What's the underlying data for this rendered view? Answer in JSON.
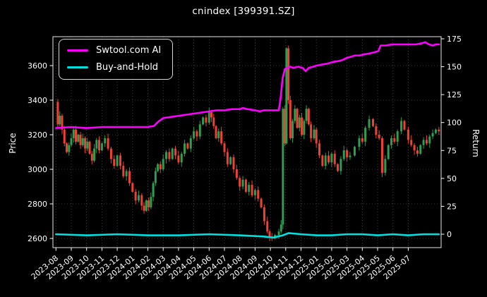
{
  "title": "cnindex [399391.SZ]",
  "legend": {
    "position": "upper-left",
    "items": [
      {
        "label": "Swtool.com AI",
        "color": "#ff00ff"
      },
      {
        "label": "Buy-and-Hold",
        "color": "#00e0e0"
      }
    ]
  },
  "colors": {
    "background": "#000000",
    "text": "#ffffff",
    "grid": "#6a6a6a",
    "spine": "#e8e8e8",
    "candle_up": "#2f9e4f",
    "candle_down": "#ef4135",
    "ai_line": "#ff00ff",
    "bh_line": "#00e0e0"
  },
  "chart_data": {
    "type": "candlestick",
    "title": "cnindex [399391.SZ]",
    "ylabel_left": "Price",
    "ylabel_right": "Return",
    "grid": "dotted",
    "legend_position": "upper left",
    "x_unit": "months since 2023-08",
    "x_tick_labels": [
      "2023-08",
      "2023-09",
      "2023-10",
      "2023-11",
      "2023-12",
      "2024-01",
      "2024-02",
      "2024-03",
      "2024-04",
      "2024-05",
      "2024-06",
      "2024-07",
      "2024-08",
      "2024-09",
      "2024-10",
      "2024-11",
      "2024-12",
      "2025-01",
      "2025-02",
      "2025-03",
      "2025-04",
      "2025-05",
      "2025-06",
      "2025-07"
    ],
    "left_ticks": [
      2600,
      2800,
      3000,
      3200,
      3400,
      3600
    ],
    "right_ticks": [
      0,
      25,
      50,
      75,
      100,
      125,
      150,
      175
    ],
    "price_ylim": [
      2543,
      3767
    ],
    "return_ylim": [
      -13,
      177
    ],
    "price_close": [
      [
        0.0,
        3390
      ],
      [
        0.12,
        3260
      ],
      [
        0.25,
        3310
      ],
      [
        0.4,
        3230
      ],
      [
        0.55,
        3150
      ],
      [
        0.7,
        3100
      ],
      [
        0.85,
        3140
      ],
      [
        1.0,
        3180
      ],
      [
        1.15,
        3230
      ],
      [
        1.3,
        3160
      ],
      [
        1.45,
        3200
      ],
      [
        1.6,
        3140
      ],
      [
        1.75,
        3180
      ],
      [
        1.9,
        3120
      ],
      [
        2.05,
        3160
      ],
      [
        2.2,
        3090
      ],
      [
        2.35,
        3050
      ],
      [
        2.5,
        3120
      ],
      [
        2.65,
        3170
      ],
      [
        2.82,
        3110
      ],
      [
        3.0,
        3150
      ],
      [
        3.2,
        3180
      ],
      [
        3.4,
        3120
      ],
      [
        3.6,
        3060
      ],
      [
        3.8,
        3020
      ],
      [
        4.0,
        3080
      ],
      [
        4.2,
        3020
      ],
      [
        4.4,
        2960
      ],
      [
        4.6,
        2990
      ],
      [
        4.8,
        2920
      ],
      [
        5.0,
        2870
      ],
      [
        5.2,
        2820
      ],
      [
        5.4,
        2850
      ],
      [
        5.6,
        2790
      ],
      [
        5.75,
        2760
      ],
      [
        5.9,
        2820
      ],
      [
        6.05,
        2780
      ],
      [
        6.2,
        2840
      ],
      [
        6.35,
        2920
      ],
      [
        6.5,
        2990
      ],
      [
        6.65,
        3030
      ],
      [
        6.82,
        3000
      ],
      [
        7.0,
        3060
      ],
      [
        7.2,
        3100
      ],
      [
        7.4,
        3060
      ],
      [
        7.6,
        3120
      ],
      [
        7.8,
        3080
      ],
      [
        8.0,
        3040
      ],
      [
        8.2,
        3090
      ],
      [
        8.4,
        3150
      ],
      [
        8.6,
        3120
      ],
      [
        8.8,
        3180
      ],
      [
        9.0,
        3220
      ],
      [
        9.2,
        3190
      ],
      [
        9.4,
        3260
      ],
      [
        9.6,
        3300
      ],
      [
        9.8,
        3270
      ],
      [
        10.0,
        3330
      ],
      [
        10.15,
        3300
      ],
      [
        10.3,
        3250
      ],
      [
        10.45,
        3180
      ],
      [
        10.62,
        3220
      ],
      [
        10.8,
        3150
      ],
      [
        11.0,
        3100
      ],
      [
        11.2,
        3030
      ],
      [
        11.4,
        3070
      ],
      [
        11.6,
        3000
      ],
      [
        11.8,
        2950
      ],
      [
        12.0,
        2900
      ],
      [
        12.2,
        2940
      ],
      [
        12.4,
        2870
      ],
      [
        12.6,
        2910
      ],
      [
        12.8,
        2850
      ],
      [
        13.0,
        2880
      ],
      [
        13.2,
        2830
      ],
      [
        13.4,
        2780
      ],
      [
        13.6,
        2700
      ],
      [
        13.8,
        2640
      ],
      [
        13.95,
        2610
      ],
      [
        14.1,
        2600
      ],
      [
        14.3,
        2620
      ],
      [
        14.55,
        2640
      ],
      [
        14.7,
        2680
      ],
      [
        14.82,
        3350
      ],
      [
        14.95,
        3150
      ],
      [
        15.05,
        3700
      ],
      [
        15.18,
        3400
      ],
      [
        15.3,
        3180
      ],
      [
        15.45,
        3280
      ],
      [
        15.6,
        3350
      ],
      [
        15.75,
        3240
      ],
      [
        15.9,
        3300
      ],
      [
        16.05,
        3200
      ],
      [
        16.2,
        3280
      ],
      [
        16.35,
        3350
      ],
      [
        16.5,
        3260
      ],
      [
        16.65,
        3180
      ],
      [
        16.85,
        3230
      ],
      [
        17.0,
        3150
      ],
      [
        17.2,
        3080
      ],
      [
        17.4,
        3020
      ],
      [
        17.6,
        3080
      ],
      [
        17.8,
        3040
      ],
      [
        18.0,
        3090
      ],
      [
        18.2,
        3030
      ],
      [
        18.4,
        2990
      ],
      [
        18.6,
        3060
      ],
      [
        18.8,
        3110
      ],
      [
        19.0,
        3070
      ],
      [
        19.2,
        3080
      ],
      [
        19.5,
        3130
      ],
      [
        19.8,
        3180
      ],
      [
        20.0,
        3160
      ],
      [
        20.2,
        3240
      ],
      [
        20.45,
        3290
      ],
      [
        20.7,
        3250
      ],
      [
        20.9,
        3200
      ],
      [
        21.1,
        3180
      ],
      [
        21.3,
        2980
      ],
      [
        21.5,
        3060
      ],
      [
        21.7,
        3140
      ],
      [
        21.9,
        3180
      ],
      [
        22.1,
        3160
      ],
      [
        22.3,
        3220
      ],
      [
        22.55,
        3280
      ],
      [
        22.75,
        3230
      ],
      [
        23.0,
        3170
      ],
      [
        23.2,
        3140
      ],
      [
        23.4,
        3110
      ],
      [
        23.6,
        3090
      ],
      [
        23.8,
        3140
      ],
      [
        24.0,
        3170
      ],
      [
        24.2,
        3150
      ],
      [
        24.4,
        3190
      ],
      [
        24.6,
        3210
      ],
      [
        24.8,
        3230
      ],
      [
        25.0,
        3220
      ]
    ],
    "series": [
      {
        "name": "Swtool.com AI",
        "axis": "return",
        "color": "#ff00ff",
        "points": [
          [
            0,
            95
          ],
          [
            1,
            96
          ],
          [
            2,
            95
          ],
          [
            3,
            96
          ],
          [
            4,
            96
          ],
          [
            5,
            96
          ],
          [
            6,
            96
          ],
          [
            6.4,
            97
          ],
          [
            6.7,
            101
          ],
          [
            7,
            104
          ],
          [
            7.5,
            105
          ],
          [
            8,
            106
          ],
          [
            8.5,
            107
          ],
          [
            9,
            108
          ],
          [
            9.5,
            109
          ],
          [
            10,
            110
          ],
          [
            10.5,
            111
          ],
          [
            11,
            111
          ],
          [
            11.5,
            112
          ],
          [
            12,
            112
          ],
          [
            12.2,
            113
          ],
          [
            12.5,
            112
          ],
          [
            13,
            111
          ],
          [
            13.3,
            110
          ],
          [
            13.6,
            111
          ],
          [
            14,
            111
          ],
          [
            14.55,
            111
          ],
          [
            14.65,
            120
          ],
          [
            14.8,
            140
          ],
          [
            14.95,
            148
          ],
          [
            15.1,
            149
          ],
          [
            15.3,
            150
          ],
          [
            15.5,
            149
          ],
          [
            15.8,
            150
          ],
          [
            16.1,
            149
          ],
          [
            16.3,
            146
          ],
          [
            16.5,
            149
          ],
          [
            16.8,
            150
          ],
          [
            17,
            151
          ],
          [
            17.4,
            152
          ],
          [
            17.8,
            153
          ],
          [
            18,
            154
          ],
          [
            18.4,
            155
          ],
          [
            18.7,
            156
          ],
          [
            19,
            158
          ],
          [
            19.3,
            159
          ],
          [
            19.5,
            160
          ],
          [
            19.8,
            160
          ],
          [
            20.1,
            161
          ],
          [
            20.5,
            162
          ],
          [
            20.8,
            163
          ],
          [
            21.05,
            164
          ],
          [
            21.2,
            169
          ],
          [
            21.5,
            169
          ],
          [
            22,
            170
          ],
          [
            22.5,
            170
          ],
          [
            23,
            170
          ],
          [
            23.5,
            170
          ],
          [
            23.9,
            171
          ],
          [
            24.1,
            172
          ],
          [
            24.35,
            170
          ],
          [
            24.6,
            169
          ],
          [
            24.8,
            170
          ],
          [
            25,
            170
          ]
        ]
      },
      {
        "name": "Buy-and-Hold",
        "axis": "return",
        "color": "#00e0e0",
        "points": [
          [
            0,
            0
          ],
          [
            2,
            -1
          ],
          [
            4,
            0
          ],
          [
            6,
            -1
          ],
          [
            8,
            -1
          ],
          [
            10,
            0
          ],
          [
            12,
            -1
          ],
          [
            13.5,
            -2
          ],
          [
            14.2,
            -3
          ],
          [
            14.8,
            -1
          ],
          [
            15.2,
            1
          ],
          [
            16,
            0
          ],
          [
            17,
            -1
          ],
          [
            18,
            -1
          ],
          [
            19,
            0
          ],
          [
            20,
            0
          ],
          [
            21,
            -1
          ],
          [
            22,
            0
          ],
          [
            23,
            -1
          ],
          [
            24,
            0
          ],
          [
            25,
            0
          ]
        ]
      }
    ]
  }
}
